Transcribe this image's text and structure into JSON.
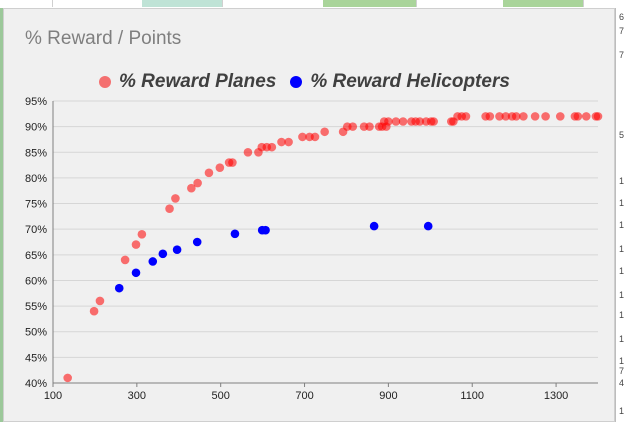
{
  "chart_data": {
    "type": "scatter",
    "title": "% Reward / Points",
    "xlabel": "",
    "ylabel": "",
    "xlim": [
      100,
      1400
    ],
    "ylim": [
      0.4,
      0.95
    ],
    "x_ticks": [
      "100",
      "300",
      "500",
      "700",
      "900",
      "1100",
      "1300"
    ],
    "y_ticks": [
      "95%",
      "90%",
      "85%",
      "80%",
      "75%",
      "70%",
      "65%",
      "60%",
      "55%",
      "50%",
      "45%",
      "40%"
    ],
    "grid": "horizontal",
    "legend_position": "top",
    "series": [
      {
        "name": "% Reward Planes",
        "color": "#ff0000",
        "opacity": 0.55,
        "points": [
          [
            135,
            0.41
          ],
          [
            198,
            0.54
          ],
          [
            212,
            0.56
          ],
          [
            272,
            0.64
          ],
          [
            298,
            0.67
          ],
          [
            312,
            0.69
          ],
          [
            378,
            0.74
          ],
          [
            392,
            0.76
          ],
          [
            430,
            0.78
          ],
          [
            445,
            0.79
          ],
          [
            472,
            0.81
          ],
          [
            498,
            0.82
          ],
          [
            520,
            0.83
          ],
          [
            528,
            0.83
          ],
          [
            565,
            0.85
          ],
          [
            590,
            0.85
          ],
          [
            598,
            0.86
          ],
          [
            610,
            0.86
          ],
          [
            622,
            0.86
          ],
          [
            645,
            0.87
          ],
          [
            662,
            0.87
          ],
          [
            695,
            0.88
          ],
          [
            712,
            0.88
          ],
          [
            725,
            0.88
          ],
          [
            748,
            0.89
          ],
          [
            792,
            0.89
          ],
          [
            802,
            0.9
          ],
          [
            815,
            0.9
          ],
          [
            842,
            0.9
          ],
          [
            855,
            0.9
          ],
          [
            878,
            0.9
          ],
          [
            885,
            0.9
          ],
          [
            890,
            0.91
          ],
          [
            895,
            0.9
          ],
          [
            900,
            0.91
          ],
          [
            918,
            0.91
          ],
          [
            935,
            0.91
          ],
          [
            955,
            0.91
          ],
          [
            965,
            0.91
          ],
          [
            975,
            0.91
          ],
          [
            990,
            0.91
          ],
          [
            1002,
            0.91
          ],
          [
            1008,
            0.91
          ],
          [
            1050,
            0.91
          ],
          [
            1055,
            0.91
          ],
          [
            1065,
            0.92
          ],
          [
            1075,
            0.92
          ],
          [
            1085,
            0.92
          ],
          [
            1132,
            0.92
          ],
          [
            1142,
            0.92
          ],
          [
            1165,
            0.92
          ],
          [
            1180,
            0.92
          ],
          [
            1195,
            0.92
          ],
          [
            1205,
            0.92
          ],
          [
            1222,
            0.92
          ],
          [
            1250,
            0.92
          ],
          [
            1275,
            0.92
          ],
          [
            1310,
            0.92
          ],
          [
            1345,
            0.92
          ],
          [
            1352,
            0.92
          ],
          [
            1372,
            0.92
          ],
          [
            1395,
            0.92
          ],
          [
            1400,
            0.92
          ]
        ]
      },
      {
        "name": "% Reward Helicopters",
        "color": "#0000ff",
        "opacity": 1,
        "points": [
          [
            258,
            0.585
          ],
          [
            298,
            0.615
          ],
          [
            338,
            0.637
          ],
          [
            362,
            0.652
          ],
          [
            396,
            0.66
          ],
          [
            444,
            0.675
          ],
          [
            534,
            0.691
          ],
          [
            599,
            0.698
          ],
          [
            607,
            0.698
          ],
          [
            866,
            0.706
          ],
          [
            995,
            0.706
          ]
        ]
      }
    ]
  },
  "spreadsheet_edge": {
    "right_fragments": [
      "6",
      "7",
      "7",
      "5",
      "1",
      "1",
      "1",
      "1",
      "1",
      "1",
      "1",
      "1",
      "1",
      "7",
      "4",
      "1"
    ]
  }
}
